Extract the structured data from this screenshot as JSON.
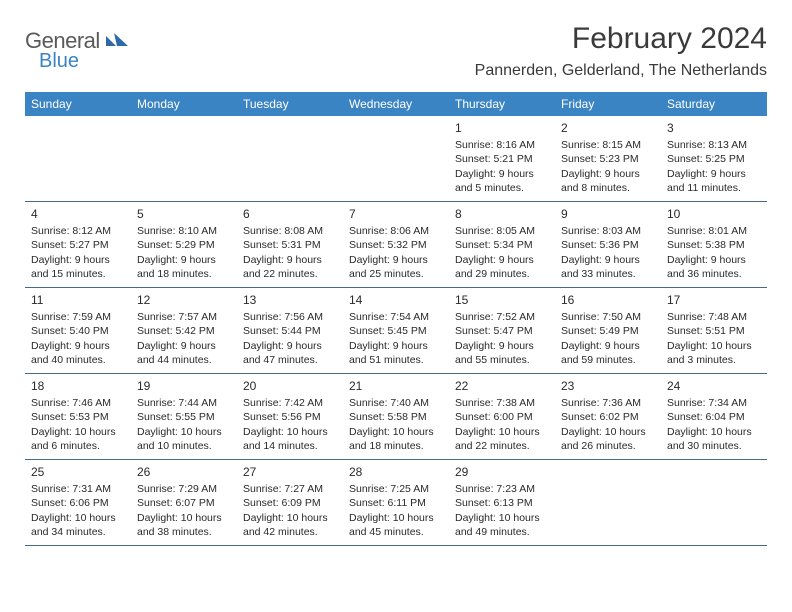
{
  "logo": {
    "text1": "General",
    "text2": "Blue"
  },
  "title": "February 2024",
  "location": "Pannerden, Gelderland, The Netherlands",
  "colors": {
    "header_bg": "#3b84c4",
    "header_text": "#ffffff",
    "row_border": "#4a6a8a",
    "body_text": "#2a2a2a",
    "title_text": "#3a3a3a",
    "logo_gray": "#5a5a5a",
    "logo_blue": "#3b84c4",
    "background": "#ffffff"
  },
  "fonts": {
    "title_size_pt": 22,
    "location_size_pt": 12,
    "header_cell_size_pt": 9,
    "day_num_size_pt": 9,
    "day_text_size_pt": 8
  },
  "day_labels": [
    "Sunday",
    "Monday",
    "Tuesday",
    "Wednesday",
    "Thursday",
    "Friday",
    "Saturday"
  ],
  "weeks": [
    [
      null,
      null,
      null,
      null,
      {
        "n": "1",
        "sr": "Sunrise: 8:16 AM",
        "ss": "Sunset: 5:21 PM",
        "dl1": "Daylight: 9 hours",
        "dl2": "and 5 minutes."
      },
      {
        "n": "2",
        "sr": "Sunrise: 8:15 AM",
        "ss": "Sunset: 5:23 PM",
        "dl1": "Daylight: 9 hours",
        "dl2": "and 8 minutes."
      },
      {
        "n": "3",
        "sr": "Sunrise: 8:13 AM",
        "ss": "Sunset: 5:25 PM",
        "dl1": "Daylight: 9 hours",
        "dl2": "and 11 minutes."
      }
    ],
    [
      {
        "n": "4",
        "sr": "Sunrise: 8:12 AM",
        "ss": "Sunset: 5:27 PM",
        "dl1": "Daylight: 9 hours",
        "dl2": "and 15 minutes."
      },
      {
        "n": "5",
        "sr": "Sunrise: 8:10 AM",
        "ss": "Sunset: 5:29 PM",
        "dl1": "Daylight: 9 hours",
        "dl2": "and 18 minutes."
      },
      {
        "n": "6",
        "sr": "Sunrise: 8:08 AM",
        "ss": "Sunset: 5:31 PM",
        "dl1": "Daylight: 9 hours",
        "dl2": "and 22 minutes."
      },
      {
        "n": "7",
        "sr": "Sunrise: 8:06 AM",
        "ss": "Sunset: 5:32 PM",
        "dl1": "Daylight: 9 hours",
        "dl2": "and 25 minutes."
      },
      {
        "n": "8",
        "sr": "Sunrise: 8:05 AM",
        "ss": "Sunset: 5:34 PM",
        "dl1": "Daylight: 9 hours",
        "dl2": "and 29 minutes."
      },
      {
        "n": "9",
        "sr": "Sunrise: 8:03 AM",
        "ss": "Sunset: 5:36 PM",
        "dl1": "Daylight: 9 hours",
        "dl2": "and 33 minutes."
      },
      {
        "n": "10",
        "sr": "Sunrise: 8:01 AM",
        "ss": "Sunset: 5:38 PM",
        "dl1": "Daylight: 9 hours",
        "dl2": "and 36 minutes."
      }
    ],
    [
      {
        "n": "11",
        "sr": "Sunrise: 7:59 AM",
        "ss": "Sunset: 5:40 PM",
        "dl1": "Daylight: 9 hours",
        "dl2": "and 40 minutes."
      },
      {
        "n": "12",
        "sr": "Sunrise: 7:57 AM",
        "ss": "Sunset: 5:42 PM",
        "dl1": "Daylight: 9 hours",
        "dl2": "and 44 minutes."
      },
      {
        "n": "13",
        "sr": "Sunrise: 7:56 AM",
        "ss": "Sunset: 5:44 PM",
        "dl1": "Daylight: 9 hours",
        "dl2": "and 47 minutes."
      },
      {
        "n": "14",
        "sr": "Sunrise: 7:54 AM",
        "ss": "Sunset: 5:45 PM",
        "dl1": "Daylight: 9 hours",
        "dl2": "and 51 minutes."
      },
      {
        "n": "15",
        "sr": "Sunrise: 7:52 AM",
        "ss": "Sunset: 5:47 PM",
        "dl1": "Daylight: 9 hours",
        "dl2": "and 55 minutes."
      },
      {
        "n": "16",
        "sr": "Sunrise: 7:50 AM",
        "ss": "Sunset: 5:49 PM",
        "dl1": "Daylight: 9 hours",
        "dl2": "and 59 minutes."
      },
      {
        "n": "17",
        "sr": "Sunrise: 7:48 AM",
        "ss": "Sunset: 5:51 PM",
        "dl1": "Daylight: 10 hours",
        "dl2": "and 3 minutes."
      }
    ],
    [
      {
        "n": "18",
        "sr": "Sunrise: 7:46 AM",
        "ss": "Sunset: 5:53 PM",
        "dl1": "Daylight: 10 hours",
        "dl2": "and 6 minutes."
      },
      {
        "n": "19",
        "sr": "Sunrise: 7:44 AM",
        "ss": "Sunset: 5:55 PM",
        "dl1": "Daylight: 10 hours",
        "dl2": "and 10 minutes."
      },
      {
        "n": "20",
        "sr": "Sunrise: 7:42 AM",
        "ss": "Sunset: 5:56 PM",
        "dl1": "Daylight: 10 hours",
        "dl2": "and 14 minutes."
      },
      {
        "n": "21",
        "sr": "Sunrise: 7:40 AM",
        "ss": "Sunset: 5:58 PM",
        "dl1": "Daylight: 10 hours",
        "dl2": "and 18 minutes."
      },
      {
        "n": "22",
        "sr": "Sunrise: 7:38 AM",
        "ss": "Sunset: 6:00 PM",
        "dl1": "Daylight: 10 hours",
        "dl2": "and 22 minutes."
      },
      {
        "n": "23",
        "sr": "Sunrise: 7:36 AM",
        "ss": "Sunset: 6:02 PM",
        "dl1": "Daylight: 10 hours",
        "dl2": "and 26 minutes."
      },
      {
        "n": "24",
        "sr": "Sunrise: 7:34 AM",
        "ss": "Sunset: 6:04 PM",
        "dl1": "Daylight: 10 hours",
        "dl2": "and 30 minutes."
      }
    ],
    [
      {
        "n": "25",
        "sr": "Sunrise: 7:31 AM",
        "ss": "Sunset: 6:06 PM",
        "dl1": "Daylight: 10 hours",
        "dl2": "and 34 minutes."
      },
      {
        "n": "26",
        "sr": "Sunrise: 7:29 AM",
        "ss": "Sunset: 6:07 PM",
        "dl1": "Daylight: 10 hours",
        "dl2": "and 38 minutes."
      },
      {
        "n": "27",
        "sr": "Sunrise: 7:27 AM",
        "ss": "Sunset: 6:09 PM",
        "dl1": "Daylight: 10 hours",
        "dl2": "and 42 minutes."
      },
      {
        "n": "28",
        "sr": "Sunrise: 7:25 AM",
        "ss": "Sunset: 6:11 PM",
        "dl1": "Daylight: 10 hours",
        "dl2": "and 45 minutes."
      },
      {
        "n": "29",
        "sr": "Sunrise: 7:23 AM",
        "ss": "Sunset: 6:13 PM",
        "dl1": "Daylight: 10 hours",
        "dl2": "and 49 minutes."
      },
      null,
      null
    ]
  ]
}
